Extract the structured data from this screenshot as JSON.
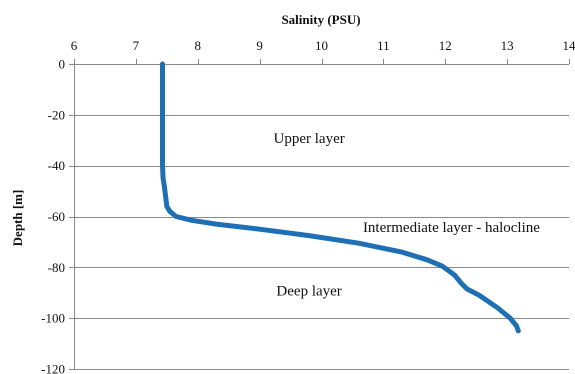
{
  "chart_data": {
    "type": "line",
    "xlabel": "Salinity (PSU)",
    "ylabel": "Depth [m]",
    "xlim": [
      6,
      14
    ],
    "ylim": [
      -120,
      0
    ],
    "x_ticks": [
      6,
      7,
      8,
      9,
      10,
      11,
      12,
      13,
      14
    ],
    "y_ticks": [
      0,
      -20,
      -40,
      -60,
      -80,
      -100,
      -120
    ],
    "x_axis_position": "top",
    "grid": "horizontal",
    "legend": "none",
    "series": [
      {
        "color": "#1f6fb4",
        "points": [
          [
            7.43,
            0
          ],
          [
            7.43,
            -10
          ],
          [
            7.43,
            -20
          ],
          [
            7.43,
            -30
          ],
          [
            7.43,
            -40
          ],
          [
            7.44,
            -45
          ],
          [
            7.46,
            -48
          ],
          [
            7.48,
            -52
          ],
          [
            7.5,
            -56
          ],
          [
            7.55,
            -58
          ],
          [
            7.65,
            -60
          ],
          [
            7.9,
            -61.5
          ],
          [
            8.3,
            -63
          ],
          [
            9.0,
            -65
          ],
          [
            9.8,
            -67.5
          ],
          [
            10.6,
            -70.5
          ],
          [
            11.3,
            -74
          ],
          [
            11.7,
            -77
          ],
          [
            11.95,
            -79.5
          ],
          [
            12.15,
            -83
          ],
          [
            12.25,
            -86
          ],
          [
            12.35,
            -88.5
          ],
          [
            12.55,
            -91
          ],
          [
            12.85,
            -96
          ],
          [
            13.05,
            -100
          ],
          [
            13.15,
            -103
          ],
          [
            13.18,
            -105
          ]
        ]
      }
    ],
    "annotations": [
      {
        "text": "Upper layer",
        "x": 9.8,
        "y": -31
      },
      {
        "text": "Intermediate layer - halocline",
        "x": 12.1,
        "y": -66
      },
      {
        "text": "Deep layer",
        "x": 9.8,
        "y": -91
      }
    ]
  }
}
